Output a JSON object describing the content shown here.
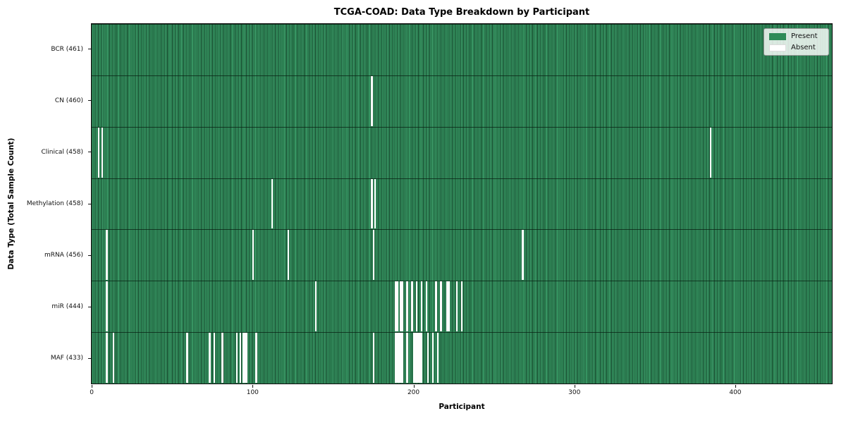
{
  "chart_data": {
    "type": "heatmap",
    "title": "TCGA-COAD: Data Type Breakdown by Participant",
    "xlabel": "Participant",
    "ylabel": "Data Type (Total Sample Count)",
    "n_participants": 461,
    "x_ticks": [
      0,
      100,
      200,
      300,
      400
    ],
    "present_color": "#2e8b57",
    "absent_color": "#ffffff",
    "legend": [
      {
        "label": "Present",
        "color": "#2e8b57"
      },
      {
        "label": "Absent",
        "color": "#ffffff"
      }
    ],
    "rows": [
      {
        "name": "BCR",
        "total": 461,
        "label": "BCR (461)",
        "absent": []
      },
      {
        "name": "CN",
        "total": 460,
        "label": "CN (460)",
        "absent": [
          174
        ]
      },
      {
        "name": "Clinical",
        "total": 458,
        "label": "Clinical (458)",
        "absent": [
          4,
          6,
          385
        ]
      },
      {
        "name": "Methylation",
        "total": 458,
        "label": "Methylation (458)",
        "absent": [
          112,
          174,
          176
        ]
      },
      {
        "name": "mRNA",
        "total": 456,
        "label": "mRNA (456)",
        "absent": [
          9,
          100,
          122,
          175,
          268
        ]
      },
      {
        "name": "miR",
        "total": 444,
        "label": "miR (444)",
        "absent": [
          9,
          139,
          189,
          190,
          192,
          193,
          196,
          199,
          202,
          205,
          208,
          214,
          217,
          221,
          222,
          227,
          230
        ]
      },
      {
        "name": "MAF",
        "total": 433,
        "label": "MAF (433)",
        "absent": [
          9,
          13,
          59,
          73,
          76,
          81,
          90,
          92,
          94,
          95,
          96,
          102,
          175,
          189,
          190,
          191,
          192,
          193,
          196,
          200,
          201,
          202,
          203,
          204,
          205,
          209,
          212,
          215
        ]
      }
    ]
  }
}
